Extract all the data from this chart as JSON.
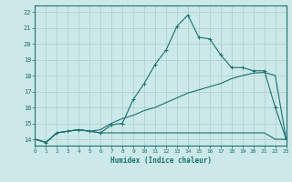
{
  "xlabel": "Humidex (Indice chaleur)",
  "x_ticks": [
    0,
    1,
    2,
    3,
    4,
    5,
    6,
    7,
    8,
    9,
    10,
    11,
    12,
    13,
    14,
    15,
    16,
    17,
    18,
    19,
    20,
    21,
    22,
    23
  ],
  "y_ticks": [
    14,
    15,
    16,
    17,
    18,
    19,
    20,
    21,
    22
  ],
  "xlim": [
    0,
    23
  ],
  "ylim": [
    13.6,
    22.4
  ],
  "bg_color": "#cce8e8",
  "grid_color": "#aacece",
  "line_color": "#1a7070",
  "line1_x": [
    0,
    1,
    2,
    3,
    4,
    5,
    6,
    7,
    8,
    9,
    10,
    11,
    12,
    13,
    14,
    15,
    16,
    17,
    18,
    19,
    20,
    21,
    22,
    23
  ],
  "line1_y": [
    14.0,
    13.8,
    14.4,
    14.5,
    14.6,
    14.5,
    14.4,
    14.9,
    15.0,
    16.5,
    17.5,
    18.7,
    19.6,
    21.1,
    21.8,
    20.4,
    20.3,
    19.3,
    18.5,
    18.5,
    18.3,
    18.3,
    16.0,
    14.0
  ],
  "line2_x": [
    0,
    1,
    2,
    3,
    4,
    5,
    6,
    7,
    8,
    9,
    10,
    11,
    12,
    13,
    14,
    15,
    16,
    17,
    18,
    19,
    20,
    21,
    22,
    23
  ],
  "line2_y": [
    14.0,
    13.8,
    14.4,
    14.5,
    14.6,
    14.5,
    14.6,
    15.0,
    15.3,
    15.5,
    15.8,
    16.0,
    16.3,
    16.6,
    16.9,
    17.1,
    17.3,
    17.5,
    17.8,
    18.0,
    18.15,
    18.2,
    18.0,
    14.0
  ],
  "line3_x": [
    0,
    1,
    2,
    3,
    4,
    5,
    6,
    7,
    8,
    9,
    10,
    11,
    12,
    13,
    14,
    15,
    16,
    17,
    18,
    19,
    20,
    21,
    22,
    23
  ],
  "line3_y": [
    14.0,
    13.8,
    14.4,
    14.5,
    14.6,
    14.5,
    14.4,
    14.4,
    14.4,
    14.4,
    14.4,
    14.4,
    14.4,
    14.4,
    14.4,
    14.4,
    14.4,
    14.4,
    14.4,
    14.4,
    14.4,
    14.4,
    14.0,
    14.0
  ]
}
